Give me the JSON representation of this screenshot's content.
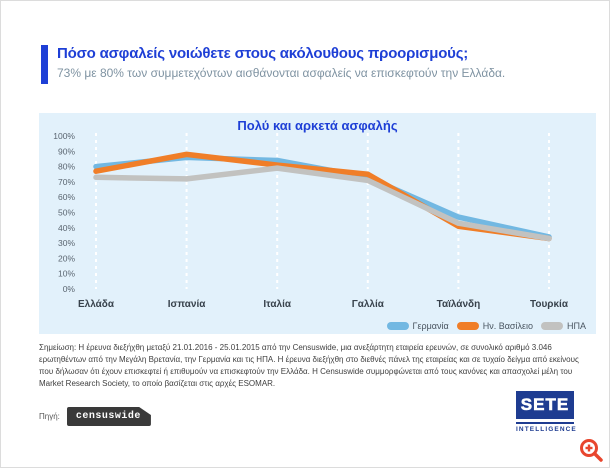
{
  "header": {
    "title": "Πόσο ασφαλείς νοιώθετε στους ακόλουθους προορισμούς;",
    "subtitle": "73% με 80% των συμμετεχόντων αισθάνονται ασφαλείς να επισκεφτούν την Ελλάδα."
  },
  "chart_data": {
    "type": "line",
    "title": "Πολύ και αρκετά ασφαλής",
    "categories": [
      "Ελλάδα",
      "Ισπανία",
      "Ιταλία",
      "Γαλλία",
      "Ταϊλάνδη",
      "Τουρκία"
    ],
    "series": [
      {
        "name": "Γερμανία",
        "color": "#72b8e2",
        "values": [
          80,
          86,
          84,
          73,
          47,
          34
        ]
      },
      {
        "name": "Ην. Βασίλειο",
        "color": "#f07e28",
        "values": [
          77,
          88,
          81,
          75,
          41,
          33
        ]
      },
      {
        "name": "ΗΠΑ",
        "color": "#c2c2c0",
        "values": [
          73,
          72,
          79,
          71,
          43,
          33
        ]
      }
    ],
    "y_ticks": [
      "100%",
      "90%",
      "80%",
      "70%",
      "60%",
      "50%",
      "40%",
      "30%",
      "20%",
      "10%",
      "0%"
    ],
    "ylim": [
      0,
      100
    ],
    "grid": "vertical-dashed-white",
    "legend_position": "bottom-right",
    "draw_order_note": "gray under blue under orange"
  },
  "footnote": "Σημείωση: Η έρευνα διεξήχθη μεταξύ 21.01.2016 - 25.01.2015 από την Censuswide, μια ανεξάρτητη εταιρεία ερευνών, σε συνολικό αριθμό 3.046 ερωτηθέντων από την Μεγάλη Βρετανία, την Γερμανία και τις ΗΠΑ. Η έρευνα διεξήχθη στο διεθνές πάνελ της εταιρείας και σε τυχαίο δείγμα από εκείνους που δήλωσαν ότι έχουν επισκεφτεί ή επιθυμούν να επισκεφτούν την Ελλάδα. Η Censuswide συμμορφώνεται από τους κανόνες και απασχολεί μέλη του Market Research Society, το οποίο βασίζεται στις αρχές ESOMAR.",
  "source": {
    "label": "Πηγή:",
    "agency": "censuswide"
  },
  "branding": {
    "logo_text": "SETE",
    "logo_subtext": "INTELLIGENCE"
  },
  "icons": {
    "zoom_icon": "zoom-in-magnifier",
    "zoom_color": "#e8462e"
  },
  "colors": {
    "accent_blue": "#1e3fd6",
    "panel_background": "#e2f1fb",
    "subtitle_gray": "#7f93a2",
    "sete_navy": "#1e3c91"
  }
}
